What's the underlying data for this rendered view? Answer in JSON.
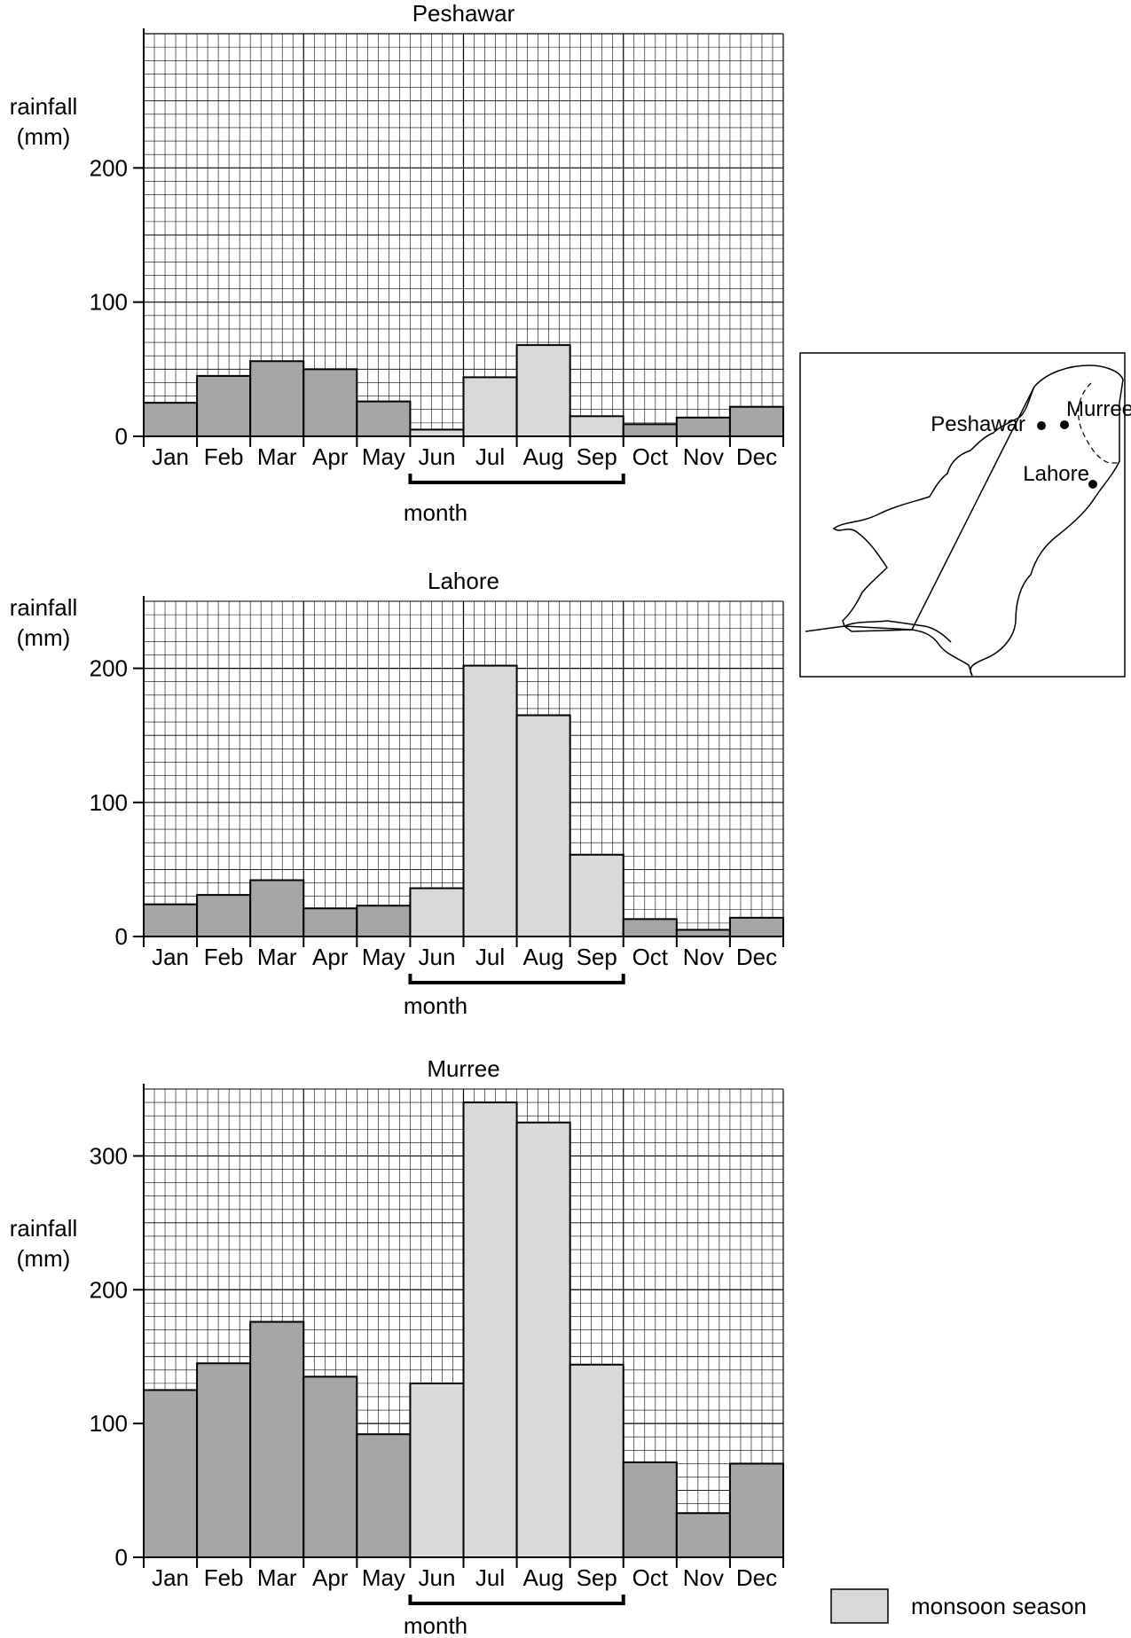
{
  "chart_data": [
    {
      "type": "bar",
      "title": "Peshawar",
      "ylabel": "rainfall (mm)",
      "xlabel": "month",
      "ylim": [
        0,
        300
      ],
      "yticks": [
        0,
        100,
        200
      ],
      "categories": [
        "Jan",
        "Feb",
        "Mar",
        "Apr",
        "May",
        "Jun",
        "Jul",
        "Aug",
        "Sep",
        "Oct",
        "Nov",
        "Dec"
      ],
      "values": [
        25,
        45,
        56,
        50,
        26,
        5,
        44,
        68,
        15,
        9,
        14,
        22
      ],
      "monsoon": [
        false,
        false,
        false,
        false,
        false,
        true,
        true,
        true,
        true,
        false,
        false,
        false
      ]
    },
    {
      "type": "bar",
      "title": "Lahore",
      "ylabel": "rainfall (mm)",
      "xlabel": "month",
      "ylim": [
        0,
        250
      ],
      "yticks": [
        0,
        100,
        200
      ],
      "categories": [
        "Jan",
        "Feb",
        "Mar",
        "Apr",
        "May",
        "Jun",
        "Jul",
        "Aug",
        "Sep",
        "Oct",
        "Nov",
        "Dec"
      ],
      "values": [
        24,
        31,
        42,
        21,
        23,
        36,
        202,
        165,
        61,
        13,
        5,
        14
      ],
      "monsoon": [
        false,
        false,
        false,
        false,
        false,
        true,
        true,
        true,
        true,
        false,
        false,
        false
      ]
    },
    {
      "type": "bar",
      "title": "Murree",
      "ylabel": "rainfall (mm)",
      "xlabel": "month",
      "ylim": [
        0,
        350
      ],
      "yticks": [
        0,
        100,
        200,
        300
      ],
      "categories": [
        "Jan",
        "Feb",
        "Mar",
        "Apr",
        "May",
        "Jun",
        "Jul",
        "Aug",
        "Sep",
        "Oct",
        "Nov",
        "Dec"
      ],
      "values": [
        125,
        145,
        176,
        135,
        92,
        130,
        340,
        325,
        144,
        71,
        33,
        70
      ],
      "monsoon": [
        false,
        false,
        false,
        false,
        false,
        true,
        true,
        true,
        true,
        false,
        false,
        false
      ]
    }
  ],
  "map": {
    "cities": [
      {
        "name": "Peshawar"
      },
      {
        "name": "Murree"
      },
      {
        "name": "Lahore"
      }
    ]
  },
  "legend": {
    "label": "monsoon season",
    "color": "#d9d9d9"
  },
  "colors": {
    "non_monsoon": "#a6a6a6",
    "monsoon": "#d9d9d9"
  }
}
